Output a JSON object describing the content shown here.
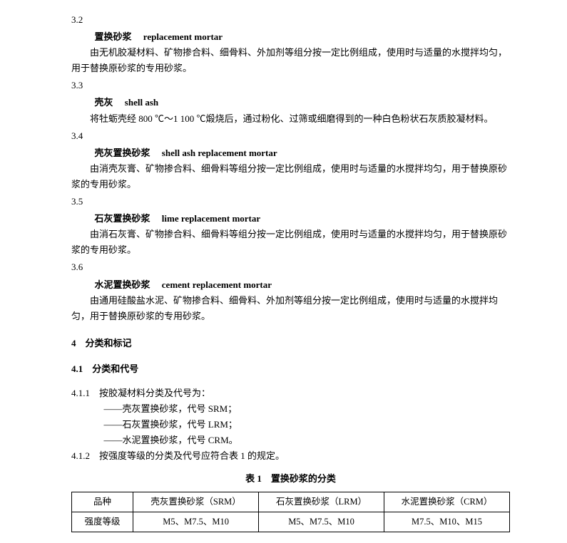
{
  "s32": {
    "num": "3.2",
    "zh": "置换砂浆",
    "en": "replacement mortar",
    "body": "由无机胶凝材料、矿物掺合料、细骨料、外加剂等组分按一定比例组成，使用时与适量的水搅拌均匀，用于替换原砂浆的专用砂浆。"
  },
  "s33": {
    "num": "3.3",
    "zh": "壳灰",
    "en": "shell ash",
    "body": "将牡蛎壳经 800 ℃～1 100 ℃煅烧后，通过粉化、过筛或细磨得到的一种白色粉状石灰质胶凝材料。"
  },
  "s34": {
    "num": "3.4",
    "zh": "壳灰置换砂浆",
    "en": "shell ash replacement mortar",
    "body": "由消壳灰膏、矿物掺合料、细骨料等组分按一定比例组成，使用时与适量的水搅拌均匀，用于替换原砂浆的专用砂浆。"
  },
  "s35": {
    "num": "3.5",
    "zh": "石灰置换砂浆",
    "en": "lime replacement mortar",
    "body": "由消石灰膏、矿物掺合料、细骨料等组分按一定比例组成，使用时与适量的水搅拌均匀，用于替换原砂浆的专用砂浆。"
  },
  "s36": {
    "num": "3.6",
    "zh": "水泥置换砂浆",
    "en": "cement replacement mortar",
    "body": "由通用硅酸盐水泥、矿物掺合料、细骨料、外加剂等组分按一定比例组成，使用时与适量的水搅拌均匀，用于替换原砂浆的专用砂浆。"
  },
  "s4": {
    "head": "4　分类和标记"
  },
  "s41": {
    "head": "4.1　分类和代号"
  },
  "s411": {
    "lead": "4.1.1　按胶凝材料分类及代号为：",
    "items": [
      "——壳灰置换砂浆，代号 SRM；",
      "——石灰置换砂浆，代号 LRM；",
      "——水泥置换砂浆，代号 CRM。"
    ]
  },
  "s412": "4.1.2　按强度等级的分类及代号应符合表 1 的规定。",
  "table1": {
    "caption": "表 1　置换砂浆的分类",
    "columns": [
      "品种",
      "壳灰置换砂浆（SRM）",
      "石灰置换砂浆（LRM）",
      "水泥置换砂浆（CRM）"
    ],
    "row_label": "强度等级",
    "row": [
      "M5、M7.5、M10",
      "M5、M7.5、M10",
      "M7.5、M10、M15"
    ]
  }
}
